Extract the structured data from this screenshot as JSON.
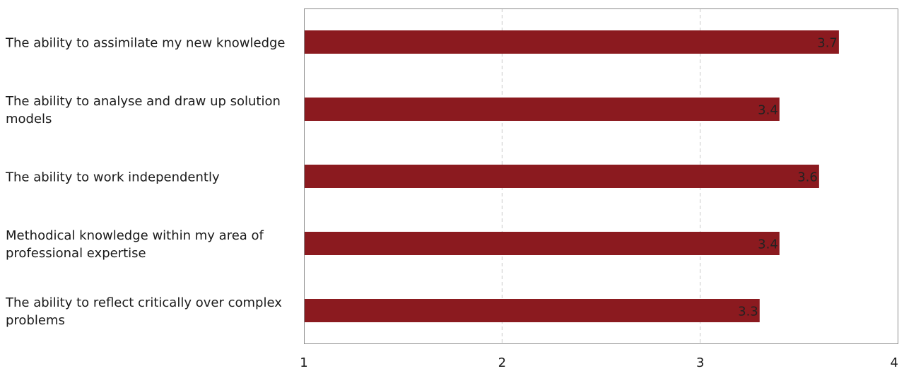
{
  "chart_data": {
    "type": "bar",
    "orientation": "horizontal",
    "title": "",
    "xlabel": "",
    "ylabel": "",
    "categories": [
      "The ability to assimilate my new knowledge",
      "The ability to analyse and draw up solution models",
      "The ability to work independently",
      "Methodical knowledge within my area of professional expertise",
      "The ability to reflect critically over complex problems"
    ],
    "values": [
      3.7,
      3.4,
      3.6,
      3.4,
      3.3
    ],
    "value_labels": [
      "3.7",
      "3.4",
      "3.6",
      "3.4",
      "3.3"
    ],
    "xlim": [
      1,
      4
    ],
    "x_ticks": [
      1,
      2,
      3,
      4
    ],
    "x_tick_labels": [
      "1",
      "2",
      "3",
      "4"
    ],
    "grid": "vertical dashed",
    "legend": "none",
    "colors": {
      "bar": "#8b1a1f",
      "grid": "#c8c8c8",
      "frame": "#8c8c8c"
    }
  }
}
